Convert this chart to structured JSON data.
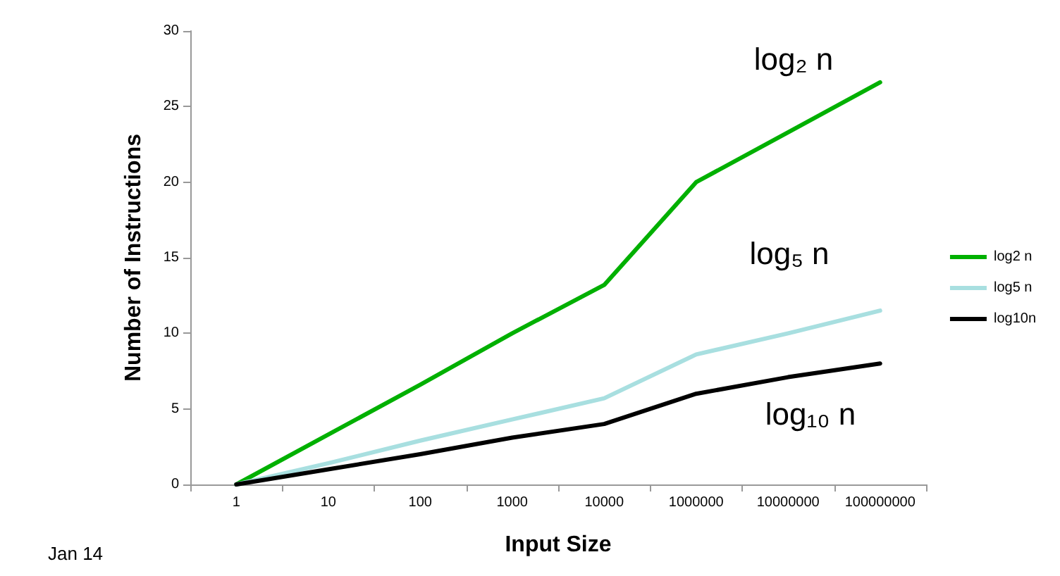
{
  "chart_data": {
    "type": "line",
    "xlabel": "Input Size",
    "ylabel": "Number of Instructions",
    "categories": [
      "1",
      "10",
      "100",
      "1000",
      "10000",
      "1000000",
      "10000000",
      "100000000"
    ],
    "series": [
      {
        "name": "log2 n",
        "color": "#00b000",
        "values": [
          0,
          3.3,
          6.6,
          10,
          13.2,
          20,
          23.3,
          26.6
        ]
      },
      {
        "name": "log5 n",
        "color": "#a8dfe0",
        "values": [
          0,
          1.4,
          2.9,
          4.3,
          5.7,
          8.6,
          10,
          11.5
        ]
      },
      {
        "name": "log10n",
        "color": "#000000",
        "values": [
          0,
          1,
          2,
          3.1,
          4,
          6,
          7.1,
          8
        ]
      }
    ],
    "ylim": [
      0,
      30
    ],
    "yticks": [
      0,
      5,
      10,
      15,
      20,
      25,
      30
    ],
    "grid": false,
    "legend": "right",
    "marker": "none",
    "line_style": "solid",
    "annotations": [
      "log₂ n",
      "log₅ n",
      "log₁₀ n",
      "Jan 14"
    ]
  }
}
